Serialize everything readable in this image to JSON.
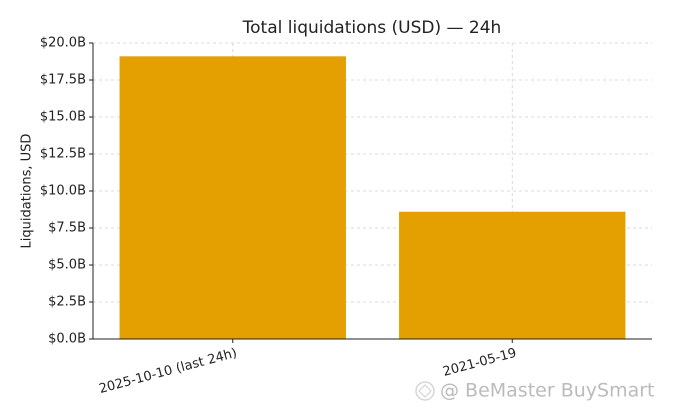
{
  "chart_data": {
    "type": "bar",
    "title": "Total liquidations (USD) — 24h",
    "y_label": "Liquidations, USD",
    "categories": [
      "2025-10-10 (last 24h)",
      "2021-05-19"
    ],
    "values": [
      19.1,
      8.6
    ],
    "color": "#e3a000",
    "ylim": [
      0,
      20
    ],
    "yticks": [
      {
        "value": 0,
        "label": "$0.0B"
      },
      {
        "value": 2.5,
        "label": "$2.5B"
      },
      {
        "value": 5,
        "label": "$5.0B"
      },
      {
        "value": 7.5,
        "label": "$7.5B"
      },
      {
        "value": 10,
        "label": "$10.0B"
      },
      {
        "value": 12.5,
        "label": "$12.5B"
      },
      {
        "value": 15,
        "label": "$15.0B"
      },
      {
        "value": 17.5,
        "label": "$17.5B"
      },
      {
        "value": 20,
        "label": "$20.0B"
      }
    ],
    "grid": true,
    "watermark": "@ BeMaster BuySmart"
  }
}
